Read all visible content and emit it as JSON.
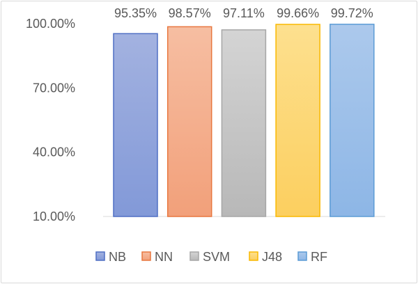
{
  "chart_data": {
    "type": "bar",
    "categories": [
      "NB",
      "NN",
      "SVM",
      "J48",
      "RF"
    ],
    "values": [
      95.35,
      98.57,
      97.11,
      99.66,
      99.72
    ],
    "data_labels": [
      "95.35%",
      "98.57%",
      "97.11%",
      "99.66%",
      "99.72%"
    ],
    "ylim": [
      10,
      100
    ],
    "yticks": [
      10,
      40,
      70,
      100
    ],
    "ytick_labels": [
      "10.00%",
      "40.00%",
      "70.00%",
      "100.00%"
    ],
    "grid": false,
    "legend": "bottom",
    "colors": {
      "NB": {
        "top": "#a3b2e0",
        "bottom": "#8299d8",
        "stroke": "#4f6fc4"
      },
      "NN": {
        "top": "#f6bea2",
        "bottom": "#f2a07a",
        "stroke": "#e8773f"
      },
      "SVM": {
        "top": "#d4d4d4",
        "bottom": "#b8b8b8",
        "stroke": "#a6a6a6"
      },
      "J48": {
        "top": "#fde08f",
        "bottom": "#fccf5f",
        "stroke": "#f9b800"
      },
      "RF": {
        "top": "#acc9ec",
        "bottom": "#8db6e6",
        "stroke": "#5b9bd5"
      }
    }
  }
}
